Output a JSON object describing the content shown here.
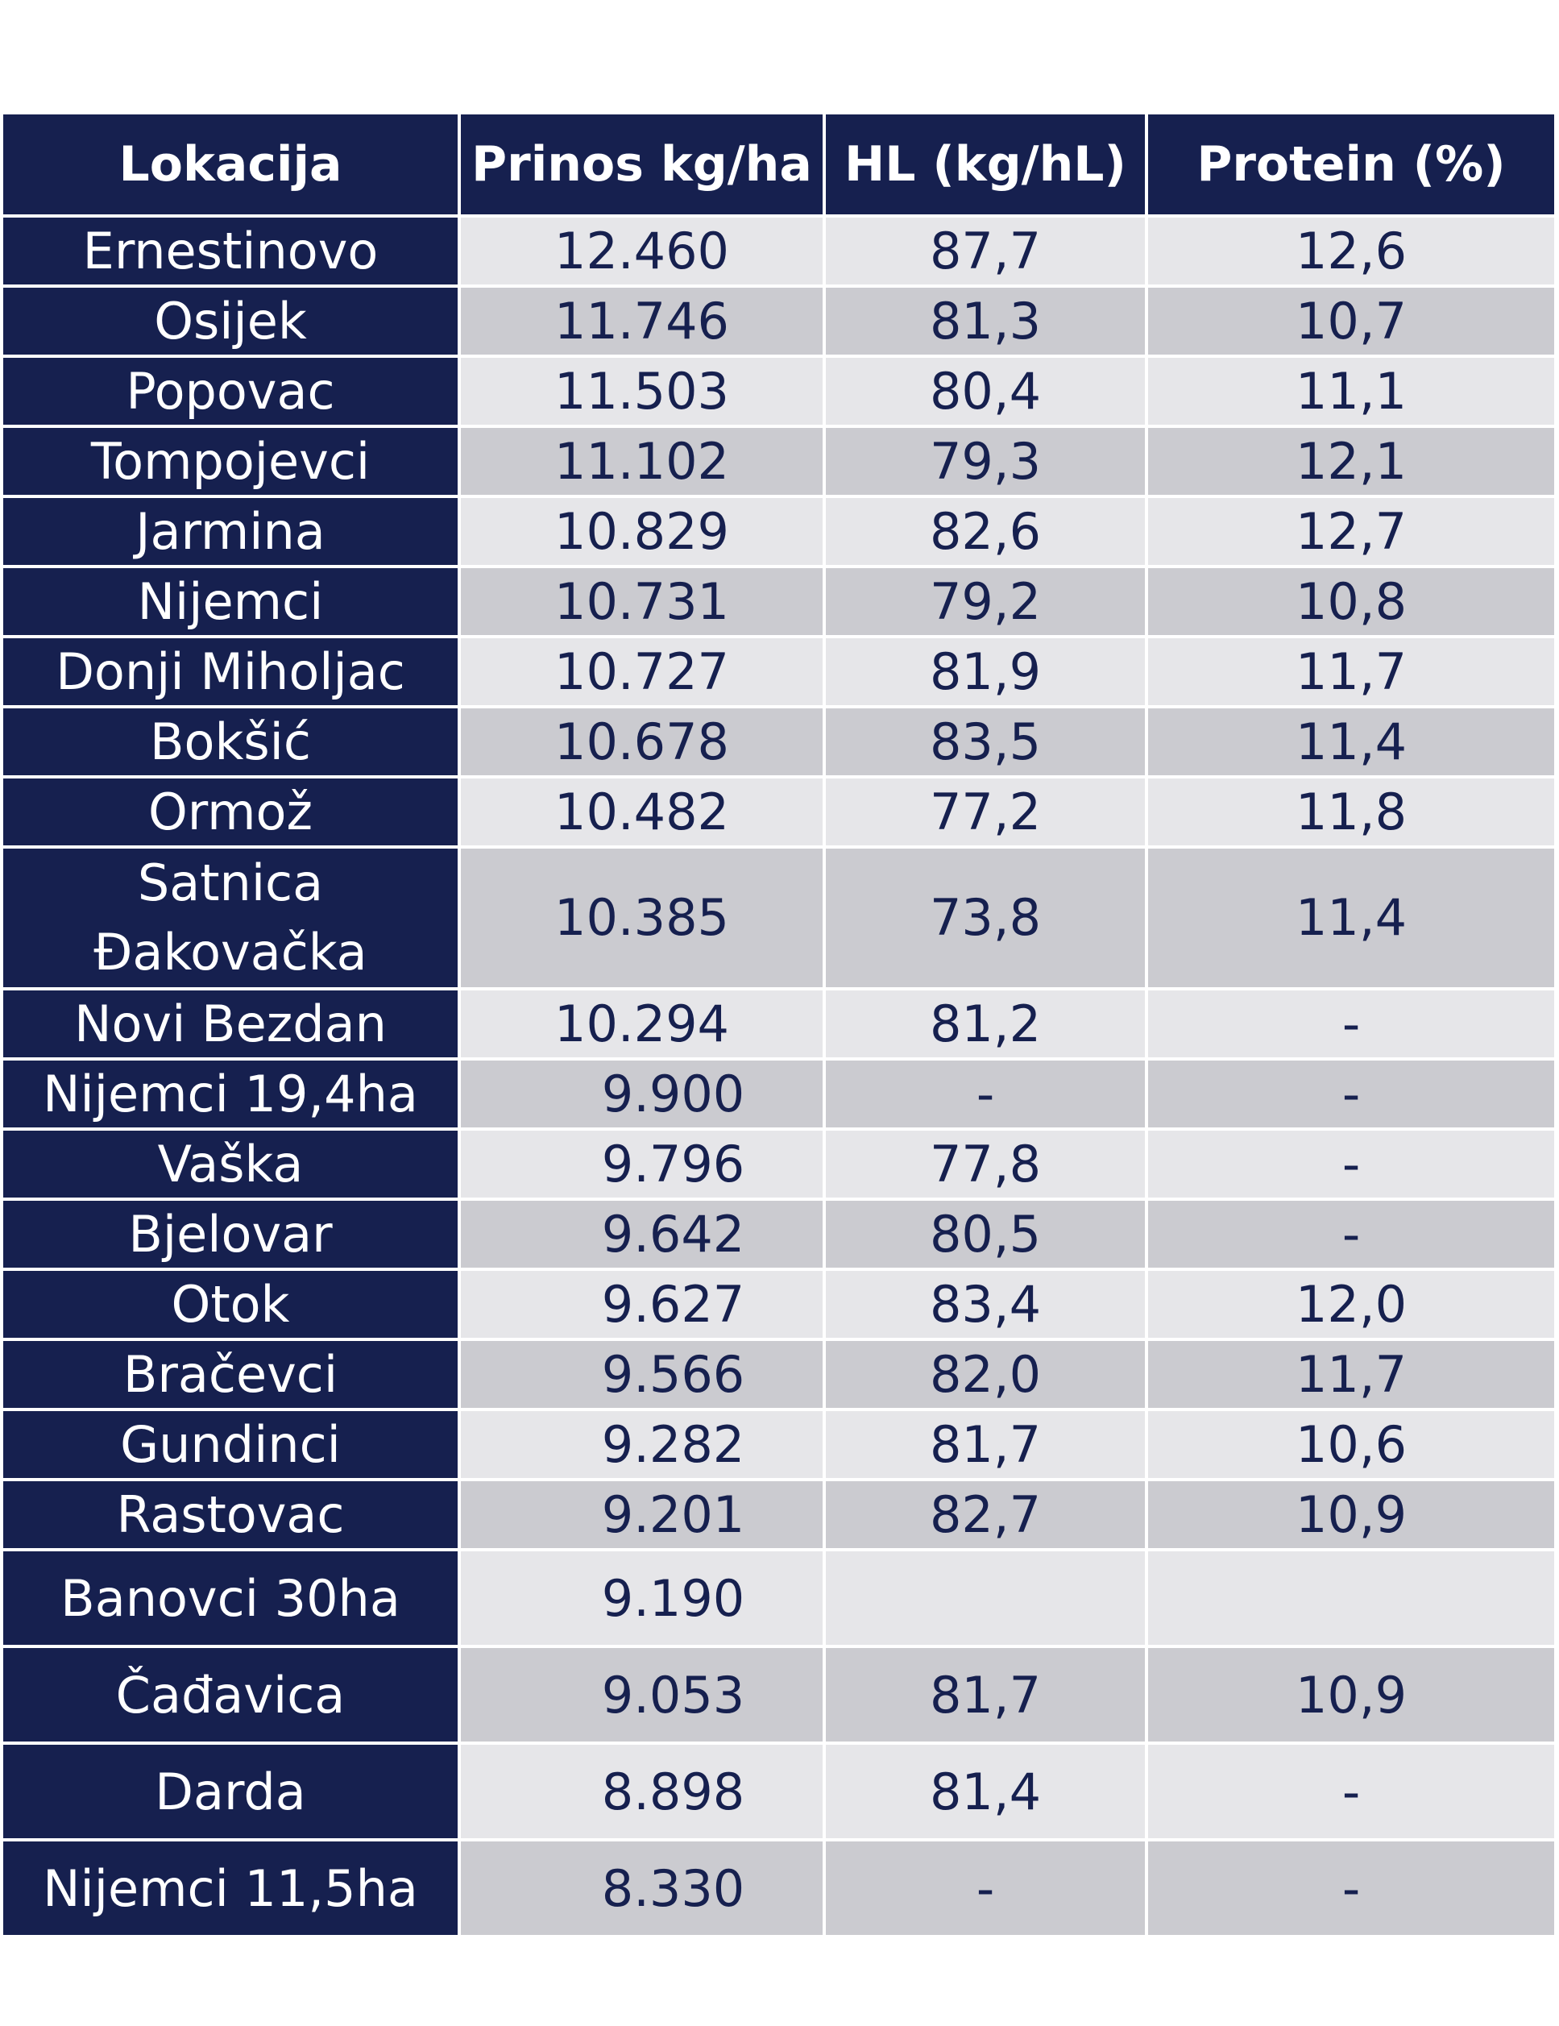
{
  "table": {
    "headers": [
      "Lokacija",
      "Prinos kg/ha",
      "HL (kg/hL)",
      "Protein (%)"
    ],
    "rows": [
      {
        "lokacija": "Ernestinovo",
        "prinos": "12.460",
        "hl": "87,7",
        "protein": "12,6"
      },
      {
        "lokacija": "Osijek",
        "prinos": "11.746",
        "hl": "81,3",
        "protein": "10,7"
      },
      {
        "lokacija": "Popovac",
        "prinos": "11.503",
        "hl": "80,4",
        "protein": "11,1"
      },
      {
        "lokacija": "Tompojevci",
        "prinos": "11.102",
        "hl": "79,3",
        "protein": "12,1"
      },
      {
        "lokacija": "Jarmina",
        "prinos": "10.829",
        "hl": "82,6",
        "protein": "12,7"
      },
      {
        "lokacija": "Nijemci",
        "prinos": "10.731",
        "hl": "79,2",
        "protein": "10,8"
      },
      {
        "lokacija": "Donji Miholjac",
        "prinos": "10.727",
        "hl": "81,9",
        "protein": "11,7"
      },
      {
        "lokacija": "Bokšić",
        "prinos": "10.678",
        "hl": "83,5",
        "protein": "11,4"
      },
      {
        "lokacija": "Ormož",
        "prinos": "10.482",
        "hl": "77,2",
        "protein": "11,8"
      },
      {
        "lokacija": "Satnica Đakovačka",
        "prinos": "10.385",
        "hl": "73,8",
        "protein": "11,4"
      },
      {
        "lokacija": "Novi Bezdan",
        "prinos": "10.294",
        "hl": "81,2",
        "protein": "-"
      },
      {
        "lokacija": "Nijemci 19,4ha",
        "prinos": "9.900",
        "hl": "-",
        "protein": "-"
      },
      {
        "lokacija": "Vaška",
        "prinos": "9.796",
        "hl": "77,8",
        "protein": "-"
      },
      {
        "lokacija": "Bjelovar",
        "prinos": "9.642",
        "hl": "80,5",
        "protein": "-"
      },
      {
        "lokacija": "Otok",
        "prinos": "9.627",
        "hl": "83,4",
        "protein": "12,0"
      },
      {
        "lokacija": "Bračevci",
        "prinos": "9.566",
        "hl": "82,0",
        "protein": "11,7"
      },
      {
        "lokacija": "Gundinci",
        "prinos": "9.282",
        "hl": "81,7",
        "protein": "10,6"
      },
      {
        "lokacija": "Rastovac",
        "prinos": "9.201",
        "hl": "82,7",
        "protein": "10,9"
      },
      {
        "lokacija": "Banovci 30ha",
        "prinos": "9.190",
        "hl": "",
        "protein": ""
      },
      {
        "lokacija": "Čađavica",
        "prinos": "9.053",
        "hl": "81,7",
        "protein": "10,9"
      },
      {
        "lokacija": "Darda",
        "prinos": "8.898",
        "hl": "81,4",
        "protein": "-"
      },
      {
        "lokacija": "Nijemci 11,5ha",
        "prinos": "8.330",
        "hl": "-",
        "protein": "-"
      }
    ]
  },
  "colors": {
    "header_bg": "#16204f",
    "location_bg": "#16204f",
    "row_light": "#e6e6e9",
    "row_dark": "#cbcbd0",
    "value_text": "#16204f"
  }
}
